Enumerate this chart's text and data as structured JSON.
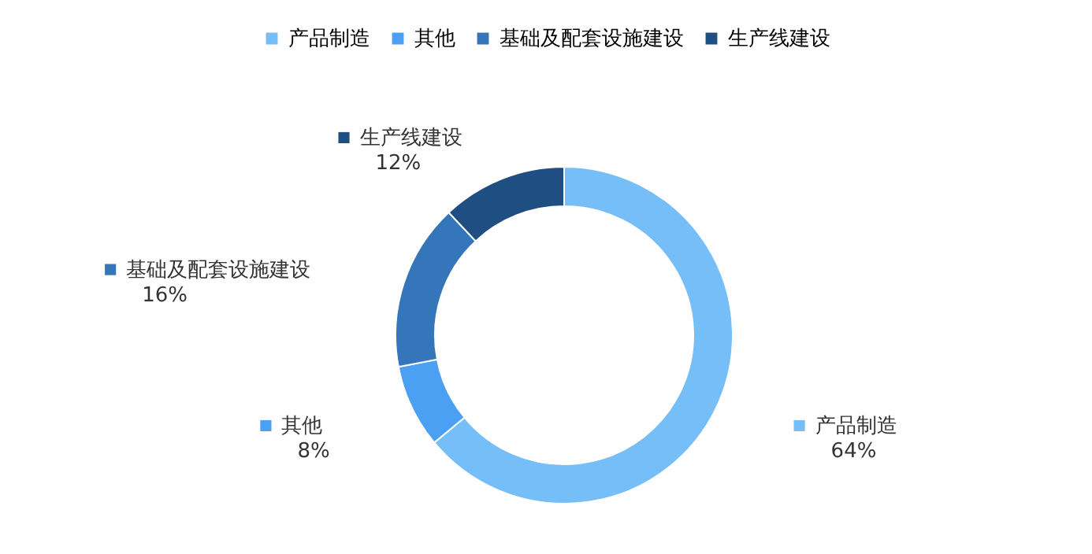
{
  "chart_data": {
    "type": "donut",
    "categories": [
      "产品制造",
      "其他",
      "基础及配套设施建设",
      "生产线建设"
    ],
    "values": [
      64,
      8,
      16,
      12
    ],
    "colors": [
      "#75bef8",
      "#4ba0f3",
      "#3575ba",
      "#1f4e82"
    ],
    "value_labels": [
      "64%",
      "8%",
      "16%",
      "12%"
    ],
    "legend": "top"
  }
}
